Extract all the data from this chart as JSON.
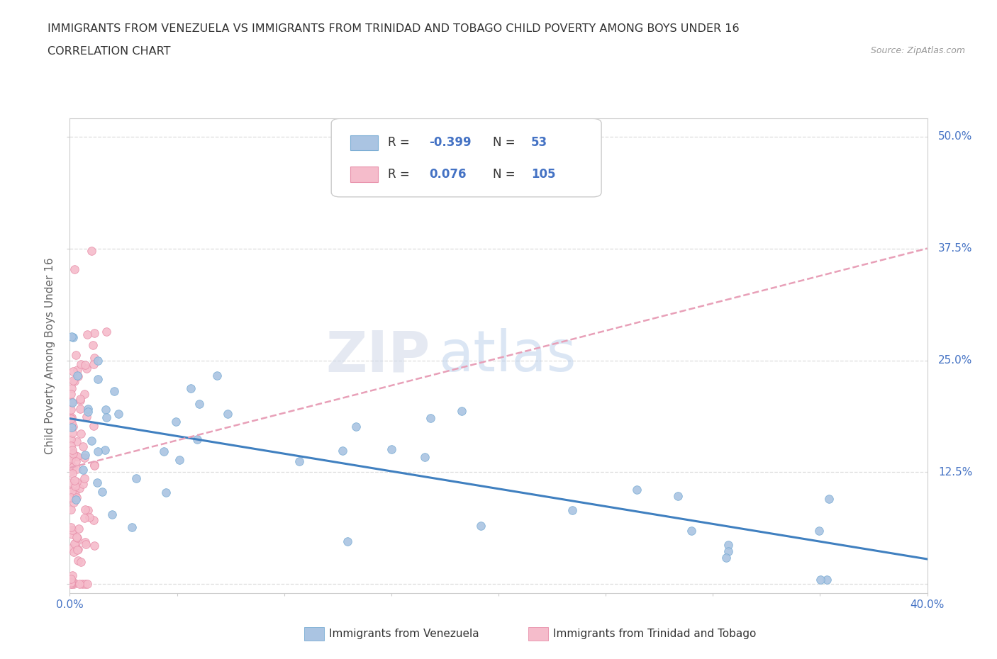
{
  "title_line1": "IMMIGRANTS FROM VENEZUELA VS IMMIGRANTS FROM TRINIDAD AND TOBAGO CHILD POVERTY AMONG BOYS UNDER 16",
  "title_line2": "CORRELATION CHART",
  "source": "Source: ZipAtlas.com",
  "ylabel": "Child Poverty Among Boys Under 16",
  "xmin": 0.0,
  "xmax": 0.4,
  "ymin": -0.01,
  "ymax": 0.52,
  "grid_color": "#dddddd",
  "background_color": "#ffffff",
  "venezuela_color": "#aac4e2",
  "venezuela_edge_color": "#7aadd4",
  "trinidad_color": "#f5bccb",
  "trinidad_edge_color": "#e890aa",
  "trend_venezuela_color": "#4080c0",
  "trend_trinidad_color": "#e8a0b8",
  "R_venezuela": -0.399,
  "N_venezuela": 53,
  "R_trinidad": 0.076,
  "N_trinidad": 105,
  "watermark_zip": "ZIP",
  "watermark_atlas": "atlas",
  "legend_r1": "R = ",
  "legend_v1": "-0.399",
  "legend_n1": "N = ",
  "legend_v2": "53",
  "legend_r2": "R = ",
  "legend_v3": "0.076",
  "legend_n2": "N = ",
  "legend_v4": "105",
  "bottom_label1": "Immigrants from Venezuela",
  "bottom_label2": "Immigrants from Trinidad and Tobago",
  "trend_ven_x0": 0.0,
  "trend_ven_x1": 0.4,
  "trend_ven_y0": 0.185,
  "trend_ven_y1": 0.028,
  "trend_tri_x0": 0.0,
  "trend_tri_x1": 0.4,
  "trend_tri_y0": 0.13,
  "trend_tri_y1": 0.375
}
